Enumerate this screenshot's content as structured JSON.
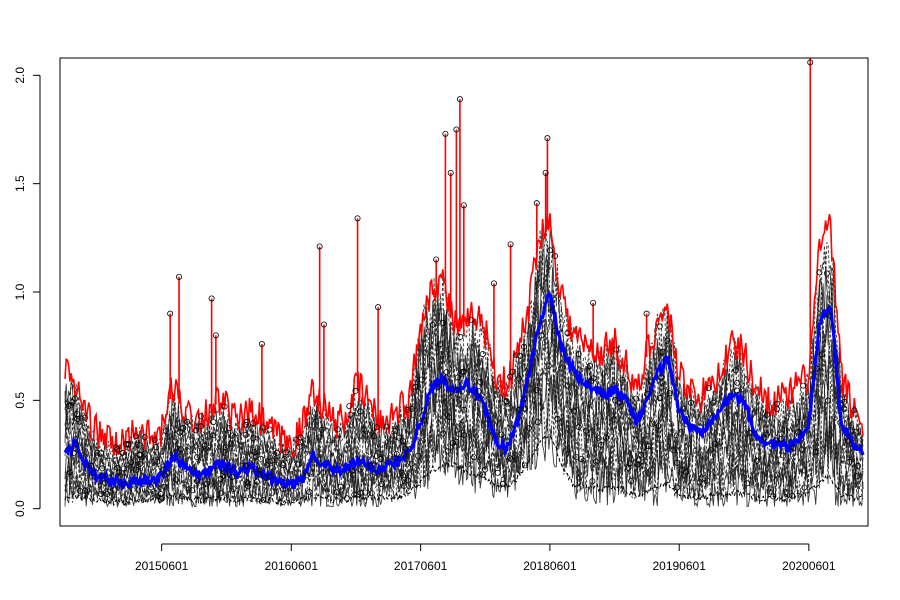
{
  "chart_data": {
    "type": "line",
    "title": "",
    "xlabel": "",
    "ylabel": "",
    "x_tick_labels": [
      "20150601",
      "20160601",
      "20170601",
      "20180601",
      "20190601",
      "20200601"
    ],
    "x_tick_dates": [
      "2015-06-01",
      "2016-06-01",
      "2017-06-01",
      "2018-06-01",
      "2019-06-01",
      "2020-06-01"
    ],
    "xlim": [
      "2014-08-18",
      "2020-11-15"
    ],
    "ylim": [
      -0.08,
      2.08
    ],
    "y_ticks": [
      0.0,
      0.5,
      1.0,
      1.5,
      2.0
    ],
    "y_tick_labels": [
      "0.0",
      "0.5",
      "1.0",
      "1.5",
      "2.0"
    ],
    "grid": false,
    "legend": "none",
    "series": [
      {
        "role": "upper",
        "style": "solid",
        "color": "#ff0000",
        "points": [
          [
            "2014-09-01",
            0.62
          ],
          [
            "2014-10-01",
            0.55
          ],
          [
            "2014-11-01",
            0.42
          ],
          [
            "2014-12-01",
            0.33
          ],
          [
            "2015-01-01",
            0.3
          ],
          [
            "2015-02-01",
            0.27
          ],
          [
            "2015-03-01",
            0.32
          ],
          [
            "2015-04-01",
            0.36
          ],
          [
            "2015-05-01",
            0.3
          ],
          [
            "2015-06-01",
            0.33
          ],
          [
            "2015-07-01",
            0.55
          ],
          [
            "2015-08-01",
            0.45
          ],
          [
            "2015-09-01",
            0.4
          ],
          [
            "2015-10-01",
            0.42
          ],
          [
            "2015-11-01",
            0.48
          ],
          [
            "2015-12-01",
            0.45
          ],
          [
            "2016-01-01",
            0.38
          ],
          [
            "2016-02-01",
            0.42
          ],
          [
            "2016-03-01",
            0.4
          ],
          [
            "2016-04-01",
            0.35
          ],
          [
            "2016-05-01",
            0.3
          ],
          [
            "2016-06-01",
            0.28
          ],
          [
            "2016-07-01",
            0.35
          ],
          [
            "2016-08-01",
            0.55
          ],
          [
            "2016-09-01",
            0.45
          ],
          [
            "2016-10-01",
            0.38
          ],
          [
            "2016-11-01",
            0.4
          ],
          [
            "2016-12-01",
            0.55
          ],
          [
            "2017-01-01",
            0.5
          ],
          [
            "2017-02-01",
            0.38
          ],
          [
            "2017-03-01",
            0.4
          ],
          [
            "2017-04-01",
            0.45
          ],
          [
            "2017-05-01",
            0.48
          ],
          [
            "2017-06-01",
            0.85
          ],
          [
            "2017-07-01",
            1.0
          ],
          [
            "2017-08-01",
            1.05
          ],
          [
            "2017-09-01",
            0.85
          ],
          [
            "2017-10-01",
            0.8
          ],
          [
            "2017-11-01",
            0.9
          ],
          [
            "2017-12-01",
            0.8
          ],
          [
            "2018-01-01",
            0.6
          ],
          [
            "2018-02-01",
            0.55
          ],
          [
            "2018-03-01",
            0.7
          ],
          [
            "2018-04-01",
            0.9
          ],
          [
            "2018-05-01",
            1.25
          ],
          [
            "2018-06-01",
            1.3
          ],
          [
            "2018-07-01",
            1.0
          ],
          [
            "2018-08-01",
            0.8
          ],
          [
            "2018-09-01",
            0.75
          ],
          [
            "2018-10-01",
            0.7
          ],
          [
            "2018-11-01",
            0.72
          ],
          [
            "2018-12-01",
            0.75
          ],
          [
            "2019-01-01",
            0.65
          ],
          [
            "2019-02-01",
            0.5
          ],
          [
            "2019-03-01",
            0.7
          ],
          [
            "2019-04-01",
            0.85
          ],
          [
            "2019-05-01",
            0.9
          ],
          [
            "2019-06-01",
            0.6
          ],
          [
            "2019-07-01",
            0.55
          ],
          [
            "2019-08-01",
            0.5
          ],
          [
            "2019-09-01",
            0.55
          ],
          [
            "2019-10-01",
            0.65
          ],
          [
            "2019-11-01",
            0.75
          ],
          [
            "2019-12-01",
            0.7
          ],
          [
            "2020-01-01",
            0.55
          ],
          [
            "2020-02-01",
            0.5
          ],
          [
            "2020-03-01",
            0.48
          ],
          [
            "2020-04-01",
            0.5
          ],
          [
            "2020-05-01",
            0.55
          ],
          [
            "2020-06-01",
            0.6
          ],
          [
            "2020-07-01",
            1.2
          ],
          [
            "2020-08-01",
            1.28
          ],
          [
            "2020-09-01",
            0.6
          ],
          [
            "2020-10-01",
            0.45
          ],
          [
            "2020-11-01",
            0.38
          ]
        ],
        "spikes": [
          [
            "2015-07-20",
            1.07
          ],
          [
            "2015-06-25",
            0.9
          ],
          [
            "2015-10-20",
            0.97
          ],
          [
            "2015-11-01",
            0.8
          ],
          [
            "2016-03-10",
            0.76
          ],
          [
            "2016-08-20",
            1.21
          ],
          [
            "2016-09-01",
            0.85
          ],
          [
            "2016-12-05",
            1.34
          ],
          [
            "2017-02-01",
            0.93
          ],
          [
            "2017-07-15",
            1.15
          ],
          [
            "2017-08-10",
            1.73
          ],
          [
            "2017-08-25",
            1.55
          ],
          [
            "2017-09-20",
            1.89
          ],
          [
            "2017-09-10",
            1.75
          ],
          [
            "2017-10-01",
            1.4
          ],
          [
            "2017-12-25",
            1.04
          ],
          [
            "2018-02-10",
            1.22
          ],
          [
            "2018-04-25",
            1.41
          ],
          [
            "2018-05-20",
            1.55
          ],
          [
            "2018-05-25",
            1.71
          ],
          [
            "2018-10-01",
            0.95
          ],
          [
            "2019-03-01",
            0.9
          ],
          [
            "2020-06-05",
            2.08
          ]
        ]
      },
      {
        "role": "center",
        "style": "solid",
        "color": "#0000ff",
        "points": [
          [
            "2014-09-01",
            0.26
          ],
          [
            "2014-10-01",
            0.3
          ],
          [
            "2014-11-01",
            0.2
          ],
          [
            "2014-12-01",
            0.15
          ],
          [
            "2015-01-01",
            0.13
          ],
          [
            "2015-02-01",
            0.12
          ],
          [
            "2015-03-01",
            0.11
          ],
          [
            "2015-04-01",
            0.14
          ],
          [
            "2015-05-01",
            0.13
          ],
          [
            "2015-06-01",
            0.15
          ],
          [
            "2015-07-01",
            0.25
          ],
          [
            "2015-08-01",
            0.2
          ],
          [
            "2015-09-01",
            0.16
          ],
          [
            "2015-10-01",
            0.17
          ],
          [
            "2015-11-01",
            0.21
          ],
          [
            "2015-12-01",
            0.2
          ],
          [
            "2016-01-01",
            0.16
          ],
          [
            "2016-02-01",
            0.19
          ],
          [
            "2016-03-01",
            0.17
          ],
          [
            "2016-04-01",
            0.14
          ],
          [
            "2016-05-01",
            0.12
          ],
          [
            "2016-06-01",
            0.11
          ],
          [
            "2016-07-01",
            0.13
          ],
          [
            "2016-08-01",
            0.25
          ],
          [
            "2016-09-01",
            0.21
          ],
          [
            "2016-10-01",
            0.17
          ],
          [
            "2016-11-01",
            0.18
          ],
          [
            "2016-12-01",
            0.22
          ],
          [
            "2017-01-01",
            0.2
          ],
          [
            "2017-02-01",
            0.18
          ],
          [
            "2017-03-01",
            0.2
          ],
          [
            "2017-04-01",
            0.22
          ],
          [
            "2017-05-01",
            0.27
          ],
          [
            "2017-06-01",
            0.4
          ],
          [
            "2017-07-01",
            0.55
          ],
          [
            "2017-08-01",
            0.6
          ],
          [
            "2017-09-01",
            0.55
          ],
          [
            "2017-10-01",
            0.58
          ],
          [
            "2017-11-01",
            0.55
          ],
          [
            "2017-12-01",
            0.45
          ],
          [
            "2018-01-01",
            0.3
          ],
          [
            "2018-02-01",
            0.28
          ],
          [
            "2018-03-01",
            0.4
          ],
          [
            "2018-04-01",
            0.6
          ],
          [
            "2018-05-01",
            0.85
          ],
          [
            "2018-06-01",
            1.0
          ],
          [
            "2018-07-01",
            0.75
          ],
          [
            "2018-08-01",
            0.65
          ],
          [
            "2018-09-01",
            0.58
          ],
          [
            "2018-10-01",
            0.55
          ],
          [
            "2018-11-01",
            0.53
          ],
          [
            "2018-12-01",
            0.55
          ],
          [
            "2019-01-01",
            0.5
          ],
          [
            "2019-02-01",
            0.4
          ],
          [
            "2019-03-01",
            0.5
          ],
          [
            "2019-04-01",
            0.62
          ],
          [
            "2019-05-01",
            0.7
          ],
          [
            "2019-06-01",
            0.45
          ],
          [
            "2019-07-01",
            0.38
          ],
          [
            "2019-08-01",
            0.35
          ],
          [
            "2019-09-01",
            0.42
          ],
          [
            "2019-10-01",
            0.48
          ],
          [
            "2019-11-01",
            0.52
          ],
          [
            "2019-12-01",
            0.5
          ],
          [
            "2020-01-01",
            0.35
          ],
          [
            "2020-02-01",
            0.3
          ],
          [
            "2020-03-01",
            0.3
          ],
          [
            "2020-04-01",
            0.28
          ],
          [
            "2020-05-01",
            0.32
          ],
          [
            "2020-06-01",
            0.4
          ],
          [
            "2020-07-01",
            0.85
          ],
          [
            "2020-08-01",
            0.95
          ],
          [
            "2020-09-01",
            0.4
          ],
          [
            "2020-10-01",
            0.3
          ],
          [
            "2020-11-01",
            0.25
          ]
        ]
      },
      {
        "role": "lower",
        "style": "dashed",
        "color": "#000000",
        "points": [
          [
            "2014-09-01",
            0.05
          ],
          [
            "2014-10-01",
            0.06
          ],
          [
            "2014-11-01",
            0.05
          ],
          [
            "2014-12-01",
            0.04
          ],
          [
            "2015-01-01",
            0.03
          ],
          [
            "2015-02-01",
            0.03
          ],
          [
            "2015-03-01",
            0.03
          ],
          [
            "2015-04-01",
            0.04
          ],
          [
            "2015-05-01",
            0.04
          ],
          [
            "2015-06-01",
            0.04
          ],
          [
            "2015-07-01",
            0.06
          ],
          [
            "2015-08-01",
            0.05
          ],
          [
            "2015-09-01",
            0.04
          ],
          [
            "2015-10-01",
            0.04
          ],
          [
            "2015-11-01",
            0.05
          ],
          [
            "2015-12-01",
            0.05
          ],
          [
            "2016-01-01",
            0.04
          ],
          [
            "2016-02-01",
            0.05
          ],
          [
            "2016-03-01",
            0.04
          ],
          [
            "2016-04-01",
            0.04
          ],
          [
            "2016-05-01",
            0.03
          ],
          [
            "2016-06-01",
            0.03
          ],
          [
            "2016-07-01",
            0.04
          ],
          [
            "2016-08-01",
            0.06
          ],
          [
            "2016-09-01",
            0.05
          ],
          [
            "2016-10-01",
            0.04
          ],
          [
            "2016-11-01",
            0.04
          ],
          [
            "2016-12-01",
            0.05
          ],
          [
            "2017-01-01",
            0.05
          ],
          [
            "2017-02-01",
            0.05
          ],
          [
            "2017-03-01",
            0.05
          ],
          [
            "2017-04-01",
            0.06
          ],
          [
            "2017-05-01",
            0.08
          ],
          [
            "2017-06-01",
            0.12
          ],
          [
            "2017-07-01",
            0.18
          ],
          [
            "2017-08-01",
            0.2
          ],
          [
            "2017-09-01",
            0.2
          ],
          [
            "2017-10-01",
            0.18
          ],
          [
            "2017-11-01",
            0.16
          ],
          [
            "2017-12-01",
            0.14
          ],
          [
            "2018-01-01",
            0.1
          ],
          [
            "2018-02-01",
            0.1
          ],
          [
            "2018-03-01",
            0.14
          ],
          [
            "2018-04-01",
            0.22
          ],
          [
            "2018-05-01",
            0.3
          ],
          [
            "2018-06-01",
            0.35
          ],
          [
            "2018-07-01",
            0.22
          ],
          [
            "2018-08-01",
            0.12
          ],
          [
            "2018-09-01",
            0.1
          ],
          [
            "2018-10-01",
            0.1
          ],
          [
            "2018-11-01",
            0.09
          ],
          [
            "2018-12-01",
            0.1
          ],
          [
            "2019-01-01",
            0.08
          ],
          [
            "2019-02-01",
            0.06
          ],
          [
            "2019-03-01",
            0.08
          ],
          [
            "2019-04-01",
            0.1
          ],
          [
            "2019-05-01",
            0.12
          ],
          [
            "2019-06-01",
            0.06
          ],
          [
            "2019-07-01",
            0.05
          ],
          [
            "2019-08-01",
            0.05
          ],
          [
            "2019-09-01",
            0.06
          ],
          [
            "2019-10-01",
            0.06
          ],
          [
            "2019-11-01",
            0.07
          ],
          [
            "2019-12-01",
            0.07
          ],
          [
            "2020-01-01",
            0.05
          ],
          [
            "2020-02-01",
            0.05
          ],
          [
            "2020-03-01",
            0.05
          ],
          [
            "2020-04-01",
            0.05
          ],
          [
            "2020-05-01",
            0.06
          ],
          [
            "2020-06-01",
            0.08
          ],
          [
            "2020-07-01",
            0.12
          ],
          [
            "2020-08-01",
            0.15
          ],
          [
            "2020-09-01",
            0.06
          ],
          [
            "2020-10-01",
            0.05
          ],
          [
            "2020-11-01",
            0.05
          ]
        ]
      }
    ]
  }
}
